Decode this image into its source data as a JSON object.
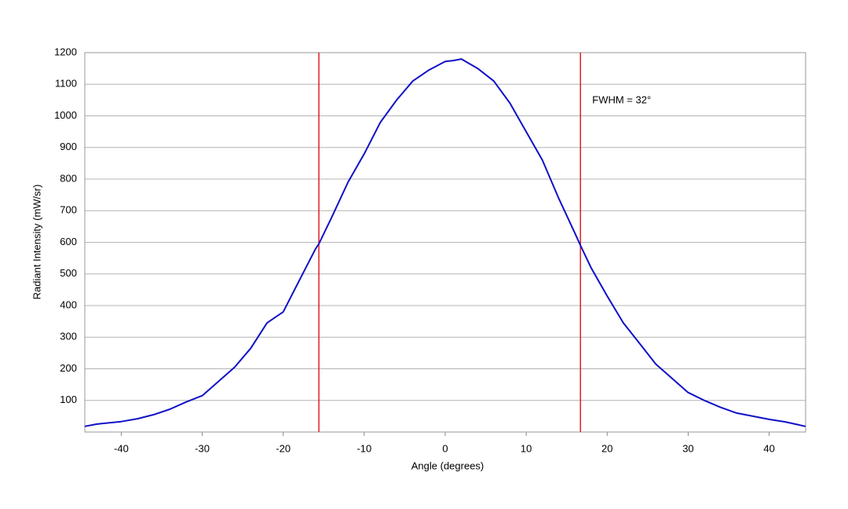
{
  "chart_data": {
    "type": "line",
    "xlabel": "Angle (degrees)",
    "ylabel": "Radiant Intensity (mW/sr)",
    "annotation": "FWHM = 32°",
    "x": [
      -44.5,
      -43,
      -40,
      -38,
      -36,
      -34,
      -32,
      -30,
      -28,
      -26,
      -24,
      -22,
      -20,
      -18,
      -16,
      -15.6,
      -14,
      -12,
      -10,
      -8,
      -6,
      -4,
      -2,
      0,
      1,
      2,
      3,
      4,
      6,
      8,
      10,
      12,
      14,
      16,
      16.7,
      18,
      20,
      22,
      24,
      26,
      28,
      30,
      32,
      34,
      36,
      38,
      40,
      42,
      44.5
    ],
    "values": [
      18,
      25,
      33,
      42,
      55,
      72,
      95,
      115,
      160,
      205,
      265,
      345,
      380,
      480,
      580,
      595,
      680,
      790,
      880,
      980,
      1050,
      1110,
      1145,
      1172,
      1175,
      1180,
      1165,
      1150,
      1110,
      1040,
      950,
      860,
      740,
      630,
      590,
      520,
      430,
      345,
      280,
      215,
      170,
      125,
      100,
      78,
      60,
      50,
      40,
      32,
      18
    ],
    "color": "#1010c8",
    "vlines": [
      -15.6,
      16.7
    ],
    "vline_color": "#e02020",
    "xlim": [
      -44.5,
      44.5
    ],
    "ylim": [
      0,
      1200
    ],
    "xticks": [
      -40,
      -30,
      -20,
      -10,
      0,
      10,
      20,
      30,
      40
    ],
    "yticks": [
      100,
      200,
      300,
      400,
      500,
      600,
      700,
      800,
      900,
      1000,
      1100,
      1200
    ],
    "grid": true
  }
}
